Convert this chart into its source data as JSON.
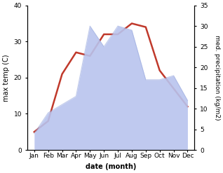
{
  "months": [
    "Jan",
    "Feb",
    "Mar",
    "Apr",
    "May",
    "Jun",
    "Jul",
    "Aug",
    "Sep",
    "Oct",
    "Nov",
    "Dec"
  ],
  "month_positions": [
    1,
    2,
    3,
    4,
    5,
    6,
    7,
    8,
    9,
    10,
    11,
    12
  ],
  "max_temp": [
    5,
    8,
    21,
    27,
    26,
    32,
    32,
    35,
    34,
    22,
    17,
    12
  ],
  "precipitation": [
    4,
    9,
    11,
    13,
    30,
    25,
    30,
    29,
    17,
    17,
    18,
    12
  ],
  "temp_color": "#c0392b",
  "precip_color_fill": "#b8c4ee",
  "precip_color_edge": "#9aaade",
  "left_ylim": [
    0,
    40
  ],
  "right_ylim": [
    0,
    35
  ],
  "left_yticks": [
    0,
    10,
    20,
    30,
    40
  ],
  "right_yticks": [
    0,
    5,
    10,
    15,
    20,
    25,
    30,
    35
  ],
  "xlabel": "date (month)",
  "ylabel_left": "max temp (C)",
  "ylabel_right": "med. precipitation (kg/m2)",
  "background_color": "#ffffff",
  "label_fontsize": 7,
  "tick_fontsize": 6.5
}
